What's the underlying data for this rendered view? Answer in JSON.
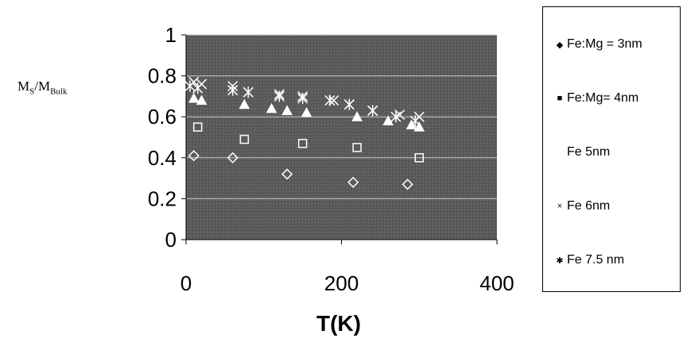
{
  "chart_data": {
    "type": "scatter",
    "title": "",
    "xlabel": "T(K)",
    "ylabel_main": "M",
    "ylabel_sub1": "S",
    "ylabel_mid": "/M",
    "ylabel_sub2": "Bulk",
    "xlim": [
      0,
      400
    ],
    "ylim": [
      0,
      1
    ],
    "x_ticks": [
      "0",
      "200",
      "400"
    ],
    "y_ticks": [
      "0",
      "0.2",
      "0.4",
      "0.6",
      "0.8",
      "1"
    ],
    "grid": true,
    "legend_position": "right",
    "series": [
      {
        "name": "Fe:Mg = 3nm",
        "marker": "diamond",
        "x": [
          10,
          60,
          130,
          215,
          285
        ],
        "y": [
          0.41,
          0.4,
          0.32,
          0.28,
          0.27
        ]
      },
      {
        "name": "Fe:Mg= 4nm",
        "marker": "square",
        "x": [
          15,
          75,
          150,
          220,
          300
        ],
        "y": [
          0.55,
          0.49,
          0.47,
          0.45,
          0.4
        ]
      },
      {
        "name": "Fe 5nm",
        "marker": "triangle",
        "x": [
          10,
          20,
          75,
          110,
          130,
          155,
          220,
          260,
          290,
          300
        ],
        "y": [
          0.69,
          0.68,
          0.66,
          0.64,
          0.63,
          0.62,
          0.6,
          0.58,
          0.56,
          0.55
        ]
      },
      {
        "name": "Fe 6nm",
        "marker": "x",
        "x": [
          10,
          20,
          60,
          80,
          120,
          150,
          190,
          210,
          240,
          275,
          300
        ],
        "y": [
          0.77,
          0.76,
          0.75,
          0.72,
          0.71,
          0.7,
          0.68,
          0.66,
          0.63,
          0.61,
          0.6
        ]
      },
      {
        "name": "Fe 7.5 nm",
        "marker": "star",
        "x": [
          5,
          15,
          60,
          80,
          120,
          150,
          185,
          210,
          240,
          270,
          295
        ],
        "y": [
          0.75,
          0.74,
          0.73,
          0.72,
          0.7,
          0.69,
          0.68,
          0.66,
          0.63,
          0.6,
          0.58
        ]
      }
    ]
  },
  "colors": {
    "plot_bg": "#5e5e5e",
    "grid": "#c8c8c8",
    "marker": "#ffffff"
  }
}
